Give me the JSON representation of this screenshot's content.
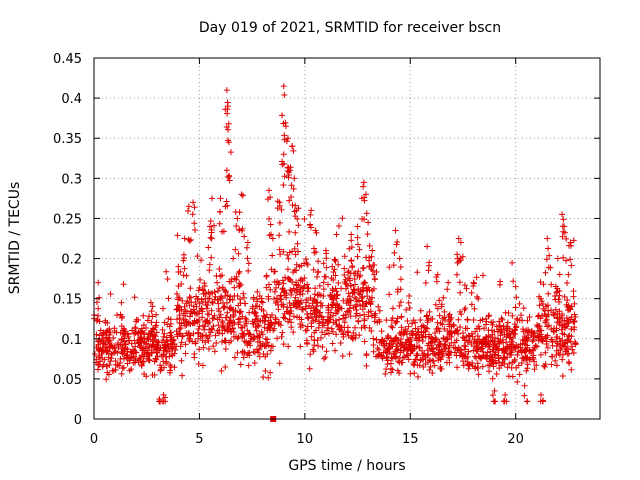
{
  "chart_data": {
    "type": "scatter",
    "title": "Day 019 of 2021, SRMTID for receiver bscn",
    "xlabel": "GPS time / hours",
    "ylabel": "SRMTID / TECUs",
    "xlim": [
      0,
      24
    ],
    "ylim": [
      0,
      0.45
    ],
    "xticks": [
      0,
      5,
      10,
      15,
      20
    ],
    "yticks": [
      0,
      0.05,
      0.1,
      0.15,
      0.2,
      0.25,
      0.3,
      0.35,
      0.4,
      0.45
    ],
    "xtick_labels": [
      "0",
      "5",
      "10",
      "15",
      "20"
    ],
    "ytick_labels": [
      "0",
      "0.05",
      "0.1",
      "0.15",
      "0.2",
      "0.25",
      "0.3",
      "0.35",
      "0.4",
      "0.45"
    ],
    "grid": true,
    "marker_color": "#e00000",
    "outliers": [
      {
        "x": 8.5,
        "y": 0.0,
        "marker": "square"
      }
    ],
    "series": [
      {
        "name": "SRMTID",
        "marker": "plus",
        "segments": [
          {
            "x0": 0.0,
            "x1": 3.9,
            "base": 0.09,
            "spread": 0.035,
            "peaks": [
              [
                0.2,
                0.17
              ],
              [
                1.3,
                0.145
              ],
              [
                2.7,
                0.145
              ],
              [
                3.1,
                0.025
              ],
              [
                3.3,
                0.03
              ]
            ]
          },
          {
            "x0": 3.9,
            "x1": 5.0,
            "base": 0.12,
            "spread": 0.05,
            "peaks": [
              [
                4.3,
                0.225
              ],
              [
                4.5,
                0.265
              ],
              [
                4.7,
                0.27
              ],
              [
                4.0,
                0.19
              ]
            ]
          },
          {
            "x0": 5.0,
            "x1": 7.0,
            "base": 0.13,
            "spread": 0.06,
            "peaks": [
              [
                5.5,
                0.24
              ],
              [
                5.6,
                0.275
              ],
              [
                6.0,
                0.275
              ],
              [
                6.3,
                0.41
              ],
              [
                6.35,
                0.39
              ],
              [
                6.4,
                0.345
              ],
              [
                6.3,
                0.31
              ],
              [
                6.8,
                0.25
              ],
              [
                6.6,
                0.2
              ]
            ]
          },
          {
            "x0": 7.0,
            "x1": 8.5,
            "base": 0.11,
            "spread": 0.055,
            "peaks": [
              [
                7.0,
                0.28
              ],
              [
                7.3,
                0.22
              ],
              [
                8.3,
                0.285
              ],
              [
                8.4,
                0.23
              ]
            ]
          },
          {
            "x0": 8.5,
            "x1": 10.0,
            "base": 0.15,
            "spread": 0.06,
            "peaks": [
              [
                9.0,
                0.415
              ],
              [
                8.8,
                0.27
              ],
              [
                9.1,
                0.365
              ],
              [
                9.2,
                0.35
              ],
              [
                9.4,
                0.34
              ],
              [
                9.5,
                0.3
              ],
              [
                9.3,
                0.31
              ],
              [
                9.6,
                0.26
              ],
              [
                9.0,
                0.33
              ]
            ]
          },
          {
            "x0": 10.0,
            "x1": 12.0,
            "base": 0.13,
            "spread": 0.055,
            "peaks": [
              [
                10.3,
                0.26
              ],
              [
                10.5,
                0.235
              ],
              [
                11.0,
                0.21
              ],
              [
                11.5,
                0.23
              ],
              [
                11.3,
                0.19
              ]
            ]
          },
          {
            "x0": 12.0,
            "x1": 13.4,
            "base": 0.14,
            "spread": 0.06,
            "peaks": [
              [
                12.2,
                0.23
              ],
              [
                12.5,
                0.24
              ],
              [
                12.8,
                0.295
              ],
              [
                12.9,
                0.28
              ],
              [
                13.0,
                0.245
              ],
              [
                13.2,
                0.21
              ]
            ]
          },
          {
            "x0": 13.4,
            "x1": 17.0,
            "base": 0.095,
            "spread": 0.04,
            "peaks": [
              [
                14.3,
                0.235
              ],
              [
                14.5,
                0.2
              ],
              [
                15.8,
                0.215
              ],
              [
                16.3,
                0.18
              ],
              [
                16.8,
                0.17
              ]
            ]
          },
          {
            "x0": 17.0,
            "x1": 21.0,
            "base": 0.09,
            "spread": 0.04,
            "peaks": [
              [
                17.3,
                0.225
              ],
              [
                17.4,
                0.22
              ],
              [
                18.0,
                0.17
              ],
              [
                19.5,
                0.03
              ],
              [
                19.0,
                0.035
              ],
              [
                20.0,
                0.165
              ],
              [
                20.5,
                0.06
              ]
            ]
          },
          {
            "x0": 21.0,
            "x1": 22.9,
            "base": 0.11,
            "spread": 0.05,
            "peaks": [
              [
                21.5,
                0.225
              ],
              [
                22.0,
                0.2
              ],
              [
                22.2,
                0.255
              ],
              [
                22.3,
                0.24
              ],
              [
                22.6,
                0.22
              ],
              [
                22.5,
                0.18
              ],
              [
                21.2,
                0.03
              ]
            ]
          }
        ]
      }
    ]
  }
}
